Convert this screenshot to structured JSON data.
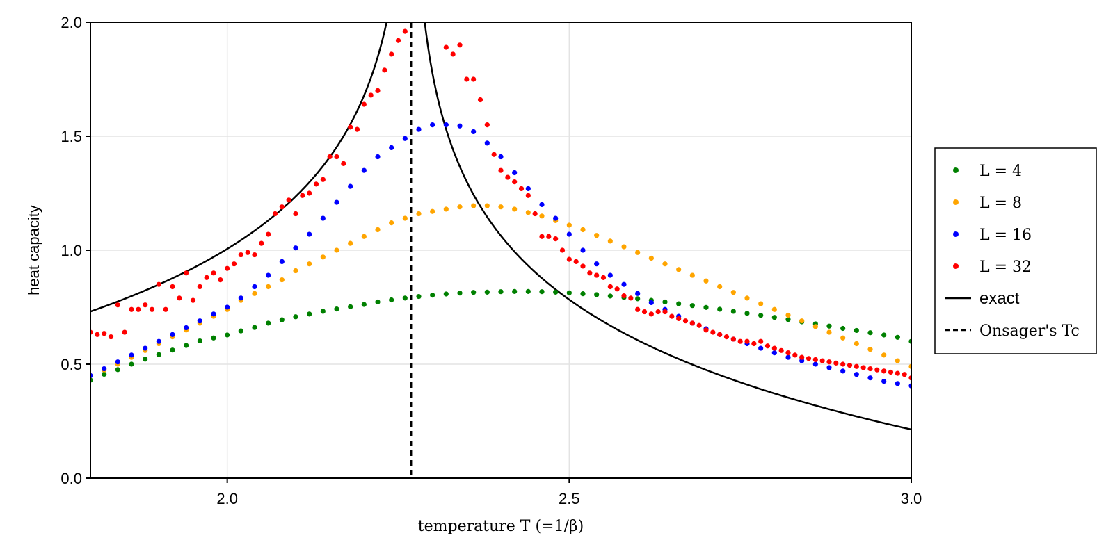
{
  "chart_data": {
    "type": "scatter",
    "title": "",
    "xlabel": "temperature T (=1/β)",
    "ylabel": "heat capacity",
    "xlim": [
      1.8,
      3.0
    ],
    "ylim": [
      0.0,
      2.0
    ],
    "xticks": [
      2.0,
      2.5,
      3.0
    ],
    "xtick_labels": [
      "2.0",
      "2.5",
      "3.0"
    ],
    "yticks": [
      0.0,
      0.5,
      1.0,
      1.5,
      2.0
    ],
    "ytick_labels": [
      "0.0",
      "0.5",
      "1.0",
      "1.5",
      "2.0"
    ],
    "grid": true,
    "legend_position": "right",
    "tc": 2.269,
    "series": [
      {
        "name": "L = 4",
        "color": "#008000",
        "x": [
          1.8,
          1.82,
          1.84,
          1.86,
          1.88,
          1.9,
          1.92,
          1.94,
          1.96,
          1.98,
          2.0,
          2.02,
          2.04,
          2.06,
          2.08,
          2.1,
          2.12,
          2.14,
          2.16,
          2.18,
          2.2,
          2.22,
          2.24,
          2.26,
          2.28,
          2.3,
          2.32,
          2.34,
          2.36,
          2.38,
          2.4,
          2.42,
          2.44,
          2.46,
          2.48,
          2.5,
          2.52,
          2.54,
          2.56,
          2.58,
          2.6,
          2.62,
          2.64,
          2.66,
          2.68,
          2.7,
          2.72,
          2.74,
          2.76,
          2.78,
          2.8,
          2.82,
          2.84,
          2.86,
          2.88,
          2.9,
          2.92,
          2.94,
          2.96,
          2.98,
          3.0
        ],
        "values": [
          0.43,
          0.456,
          0.476,
          0.5,
          0.522,
          0.542,
          0.562,
          0.582,
          0.602,
          0.615,
          0.628,
          0.646,
          0.661,
          0.68,
          0.695,
          0.708,
          0.72,
          0.732,
          0.742,
          0.752,
          0.762,
          0.773,
          0.782,
          0.79,
          0.797,
          0.803,
          0.808,
          0.812,
          0.815,
          0.816,
          0.818,
          0.819,
          0.819,
          0.818,
          0.816,
          0.813,
          0.809,
          0.805,
          0.799,
          0.793,
          0.787,
          0.78,
          0.773,
          0.765,
          0.757,
          0.749,
          0.741,
          0.732,
          0.723,
          0.714,
          0.705,
          0.696,
          0.686,
          0.677,
          0.667,
          0.657,
          0.648,
          0.638,
          0.628,
          0.618,
          0.6
        ]
      },
      {
        "name": "L = 8",
        "color": "#FFA500",
        "x": [
          1.8,
          1.82,
          1.84,
          1.86,
          1.88,
          1.9,
          1.92,
          1.94,
          1.96,
          1.98,
          2.0,
          2.02,
          2.04,
          2.06,
          2.08,
          2.1,
          2.12,
          2.14,
          2.16,
          2.18,
          2.2,
          2.22,
          2.24,
          2.26,
          2.28,
          2.3,
          2.32,
          2.34,
          2.36,
          2.38,
          2.4,
          2.42,
          2.44,
          2.46,
          2.48,
          2.5,
          2.52,
          2.54,
          2.56,
          2.58,
          2.6,
          2.62,
          2.64,
          2.66,
          2.68,
          2.7,
          2.72,
          2.74,
          2.76,
          2.78,
          2.8,
          2.82,
          2.84,
          2.86,
          2.88,
          2.9,
          2.92,
          2.94,
          2.96,
          2.98,
          3.0
        ],
        "values": [
          0.45,
          0.475,
          0.5,
          0.53,
          0.56,
          0.59,
          0.62,
          0.65,
          0.68,
          0.71,
          0.74,
          0.78,
          0.81,
          0.84,
          0.87,
          0.91,
          0.94,
          0.97,
          1.0,
          1.03,
          1.06,
          1.09,
          1.12,
          1.14,
          1.16,
          1.17,
          1.18,
          1.19,
          1.195,
          1.195,
          1.19,
          1.18,
          1.165,
          1.15,
          1.13,
          1.11,
          1.09,
          1.065,
          1.04,
          1.015,
          0.99,
          0.965,
          0.94,
          0.915,
          0.89,
          0.865,
          0.84,
          0.815,
          0.79,
          0.765,
          0.74,
          0.715,
          0.69,
          0.665,
          0.64,
          0.615,
          0.59,
          0.565,
          0.54,
          0.515,
          0.49
        ]
      },
      {
        "name": "L = 16",
        "color": "#0000FF",
        "x": [
          1.8,
          1.82,
          1.84,
          1.86,
          1.88,
          1.9,
          1.92,
          1.94,
          1.96,
          1.98,
          2.0,
          2.02,
          2.04,
          2.06,
          2.08,
          2.1,
          2.12,
          2.14,
          2.16,
          2.18,
          2.2,
          2.22,
          2.24,
          2.26,
          2.28,
          2.3,
          2.32,
          2.34,
          2.36,
          2.38,
          2.4,
          2.42,
          2.44,
          2.46,
          2.48,
          2.5,
          2.52,
          2.54,
          2.56,
          2.58,
          2.6,
          2.62,
          2.64,
          2.66,
          2.68,
          2.7,
          2.72,
          2.74,
          2.76,
          2.78,
          2.8,
          2.82,
          2.84,
          2.86,
          2.88,
          2.9,
          2.92,
          2.94,
          2.96,
          2.98,
          3.0
        ],
        "values": [
          0.45,
          0.48,
          0.51,
          0.54,
          0.57,
          0.6,
          0.63,
          0.66,
          0.69,
          0.72,
          0.75,
          0.79,
          0.84,
          0.89,
          0.95,
          1.01,
          1.07,
          1.14,
          1.21,
          1.28,
          1.35,
          1.41,
          1.45,
          1.49,
          1.53,
          1.55,
          1.55,
          1.545,
          1.52,
          1.47,
          1.41,
          1.34,
          1.27,
          1.2,
          1.14,
          1.07,
          1.0,
          0.94,
          0.89,
          0.85,
          0.81,
          0.77,
          0.74,
          0.71,
          0.68,
          0.655,
          0.63,
          0.61,
          0.59,
          0.57,
          0.55,
          0.53,
          0.515,
          0.5,
          0.485,
          0.47,
          0.455,
          0.44,
          0.425,
          0.415,
          0.405
        ]
      },
      {
        "name": "L = 32",
        "color": "#FF0000",
        "x": [
          1.8,
          1.81,
          1.82,
          1.83,
          1.84,
          1.85,
          1.86,
          1.87,
          1.88,
          1.89,
          1.9,
          1.91,
          1.92,
          1.93,
          1.94,
          1.95,
          1.96,
          1.97,
          1.98,
          1.99,
          2.0,
          2.01,
          2.02,
          2.03,
          2.04,
          2.05,
          2.06,
          2.07,
          2.08,
          2.09,
          2.1,
          2.11,
          2.12,
          2.13,
          2.14,
          2.15,
          2.16,
          2.17,
          2.18,
          2.19,
          2.2,
          2.21,
          2.22,
          2.23,
          2.24,
          2.25,
          2.26,
          2.32,
          2.33,
          2.34,
          2.35,
          2.36,
          2.37,
          2.38,
          2.39,
          2.4,
          2.41,
          2.42,
          2.43,
          2.44,
          2.45,
          2.46,
          2.47,
          2.48,
          2.49,
          2.5,
          2.51,
          2.52,
          2.53,
          2.54,
          2.55,
          2.56,
          2.57,
          2.58,
          2.59,
          2.6,
          2.61,
          2.62,
          2.63,
          2.64,
          2.65,
          2.66,
          2.67,
          2.68,
          2.69,
          2.7,
          2.71,
          2.72,
          2.73,
          2.74,
          2.75,
          2.76,
          2.77,
          2.78,
          2.79,
          2.8,
          2.81,
          2.82,
          2.83,
          2.84,
          2.85,
          2.86,
          2.87,
          2.88,
          2.89,
          2.9,
          2.91,
          2.92,
          2.93,
          2.94,
          2.95,
          2.96,
          2.97,
          2.98,
          2.99,
          3.0
        ],
        "values": [
          0.64,
          0.63,
          0.635,
          0.62,
          0.76,
          0.64,
          0.74,
          0.74,
          0.76,
          0.74,
          0.85,
          0.74,
          0.84,
          0.79,
          0.9,
          0.78,
          0.84,
          0.88,
          0.9,
          0.87,
          0.92,
          0.94,
          0.98,
          0.99,
          0.98,
          1.03,
          1.07,
          1.16,
          1.19,
          1.22,
          1.16,
          1.24,
          1.25,
          1.29,
          1.31,
          1.41,
          1.41,
          1.38,
          1.54,
          1.53,
          1.64,
          1.68,
          1.7,
          1.79,
          1.86,
          1.92,
          1.96,
          1.89,
          1.86,
          1.9,
          1.75,
          1.75,
          1.66,
          1.55,
          1.42,
          1.35,
          1.32,
          1.3,
          1.27,
          1.24,
          1.16,
          1.06,
          1.06,
          1.05,
          1.0,
          0.96,
          0.95,
          0.93,
          0.9,
          0.89,
          0.88,
          0.84,
          0.83,
          0.8,
          0.79,
          0.74,
          0.73,
          0.72,
          0.73,
          0.73,
          0.71,
          0.7,
          0.69,
          0.68,
          0.67,
          0.65,
          0.64,
          0.63,
          0.62,
          0.61,
          0.6,
          0.6,
          0.59,
          0.6,
          0.58,
          0.57,
          0.56,
          0.55,
          0.54,
          0.53,
          0.525,
          0.52,
          0.515,
          0.51,
          0.505,
          0.5,
          0.495,
          0.49,
          0.485,
          0.48,
          0.475,
          0.47,
          0.465,
          0.46,
          0.455,
          0.44
        ]
      }
    ],
    "lines": [
      {
        "name": "exact",
        "style": "solid",
        "color": "#000000"
      },
      {
        "name": "Onsager's Tc",
        "style": "dashed",
        "color": "#000000"
      }
    ],
    "legend": [
      {
        "label": "L = 4",
        "marker": "dot",
        "color": "#008000"
      },
      {
        "label": "L = 8",
        "marker": "dot",
        "color": "#FFA500"
      },
      {
        "label": "L = 16",
        "marker": "dot",
        "color": "#0000FF"
      },
      {
        "label": "L = 32",
        "marker": "dot",
        "color": "#FF0000"
      },
      {
        "label": "exact",
        "marker": "solid-line",
        "color": "#000000"
      },
      {
        "label": "Onsager's Tc",
        "marker": "dashed-line",
        "color": "#000000"
      }
    ]
  }
}
